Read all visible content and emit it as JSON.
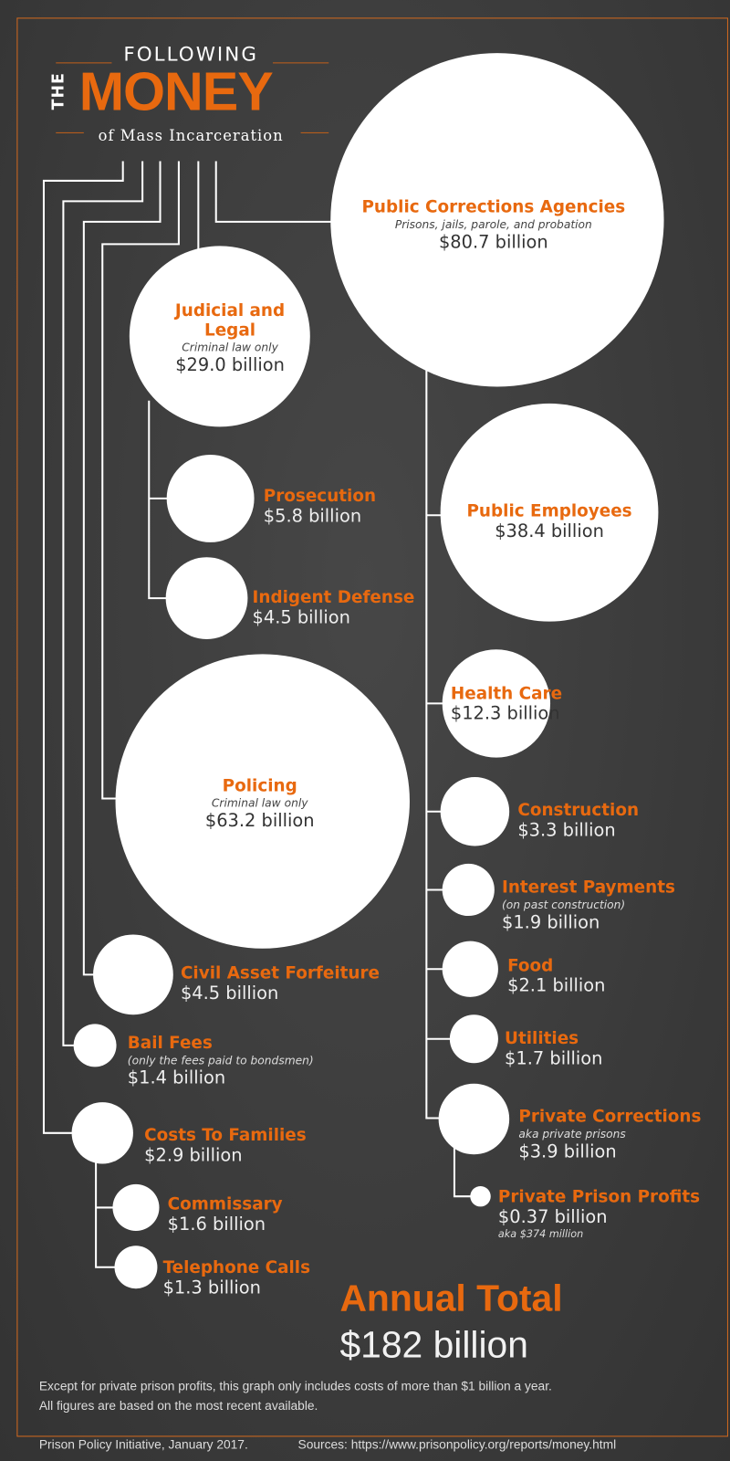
{
  "header": {
    "following": "FOLLOWING",
    "the": "THE",
    "money": "MONEY",
    "subtitle": "of Mass Incarceration"
  },
  "nodes": {
    "public_corrections": {
      "title": "Public Corrections Agencies",
      "sub": "Prisons, jails, parole, and probation",
      "value": "$80.7 billion"
    },
    "judicial": {
      "title1": "Judicial and",
      "title2": "Legal",
      "sub": "Criminal law only",
      "value": "$29.0 billion"
    },
    "prosecution": {
      "title": "Prosecution",
      "value": "$5.8 billion"
    },
    "indigent_defense": {
      "title": "Indigent Defense",
      "value": "$4.5 billion"
    },
    "policing": {
      "title": "Policing",
      "sub": "Criminal law only",
      "value": "$63.2 billion"
    },
    "civil_asset_forfeiture": {
      "title": "Civil Asset Forfeiture",
      "value": "$4.5 billion"
    },
    "bail_fees": {
      "title": "Bail Fees",
      "sub": "(only the fees paid to bondsmen)",
      "value": "$1.4 billion"
    },
    "costs_to_families": {
      "title": "Costs To Families",
      "value": "$2.9 billion"
    },
    "commissary": {
      "title": "Commissary",
      "value": "$1.6 billion"
    },
    "telephone_calls": {
      "title": "Telephone Calls",
      "value": "$1.3 billion"
    },
    "public_employees": {
      "title": "Public Employees",
      "value": "$38.4 billion"
    },
    "health_care": {
      "title": "Health Care",
      "value": "$12.3 billion"
    },
    "construction": {
      "title": "Construction",
      "value": "$3.3 billion"
    },
    "interest_payments": {
      "title": "Interest Payments",
      "sub": "(on past construction)",
      "value": "$1.9 billion"
    },
    "food": {
      "title": "Food",
      "value": "$2.1 billion"
    },
    "utilities": {
      "title": "Utilities",
      "value": "$1.7 billion"
    },
    "private_corrections": {
      "title": "Private Corrections",
      "sub": "aka private prisons",
      "value": "$3.9 billion"
    },
    "private_prison_profits": {
      "title": "Private Prison Profits",
      "value": "$0.37 billion",
      "sub": "aka $374 million"
    }
  },
  "total": {
    "label": "Annual Total",
    "value": "$182 billion"
  },
  "notes": [
    "Except for private prison profits, this graph only includes costs of more than $1 billion a year.",
    "All figures are based on the most recent available."
  ],
  "footer": {
    "credit": "Prison Policy Initiative, January 2017.",
    "sources": "Sources: https://www.prisonpolicy.org/reports/money.html"
  },
  "colors": {
    "accent": "#e8690f",
    "background": "#3a3a3a",
    "circle": "#ffffff"
  }
}
